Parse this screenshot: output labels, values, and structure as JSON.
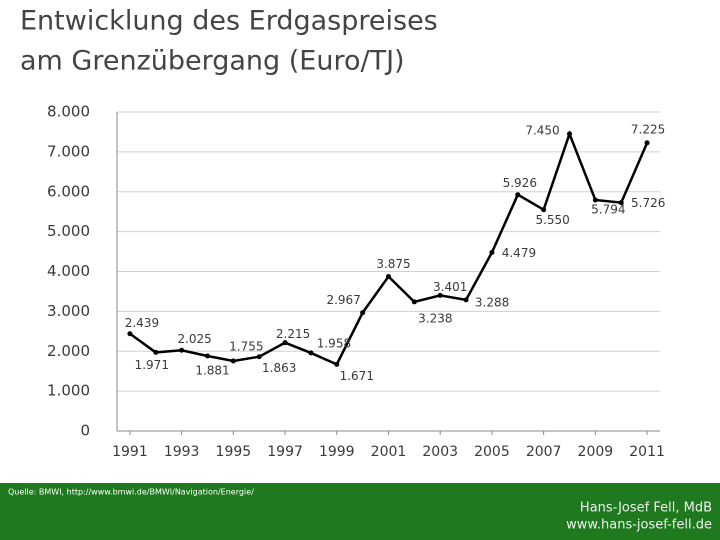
{
  "chart_data": {
    "type": "line",
    "title": [
      "Entwicklung des Erdgaspreises",
      "am Grenzübergang (Euro/TJ)"
    ],
    "x": [
      1991,
      1992,
      1993,
      1994,
      1995,
      1996,
      1997,
      1998,
      1999,
      2000,
      2001,
      2002,
      2003,
      2004,
      2005,
      2006,
      2007,
      2008,
      2009,
      2010,
      2011
    ],
    "values": [
      2439,
      1971,
      2025,
      1881,
      1755,
      1863,
      2215,
      1958,
      1671,
      2967,
      3875,
      3238,
      3401,
      3288,
      4479,
      5926,
      5550,
      7450,
      5794,
      5726,
      7225
    ],
    "value_labels": [
      "2.439",
      "1.971",
      "2.025",
      "1.881",
      "1.755",
      "1.863",
      "2.215",
      "1.958",
      "1.671",
      "2.967",
      "3.875",
      "3.238",
      "3.401",
      "3.288",
      "4.479",
      "5.926",
      "5.550",
      "7.450",
      "5.794",
      "5.726",
      "7.225"
    ],
    "color": "#000000",
    "xlim": [
      1990.5,
      2011.5
    ],
    "xticks": [
      1991,
      1993,
      1995,
      1997,
      1999,
      2001,
      2003,
      2005,
      2007,
      2009,
      2011
    ],
    "ylim": [
      0,
      8000
    ],
    "yticks": [
      0,
      {
        "value": 1000,
        "label": "1.000"
      },
      {
        "value": 2000,
        "label": "2.000"
      },
      {
        "value": 3000,
        "label": "3.000"
      },
      {
        "value": 4000,
        "label": "4.000"
      },
      {
        "value": 5000,
        "label": "5.000"
      },
      {
        "value": 6000,
        "label": "6.000"
      },
      {
        "value": 7000,
        "label": "7.000"
      },
      {
        "value": 8000,
        "label": "8.000"
      }
    ],
    "grid": true
  },
  "footer": {
    "source": "Quelle: BMWI, http://www.bmwi.de/BMWI/Navigation/Energie/",
    "author": "Hans-Josef Fell, MdB",
    "website": "www.hans-josef-fell.de"
  }
}
